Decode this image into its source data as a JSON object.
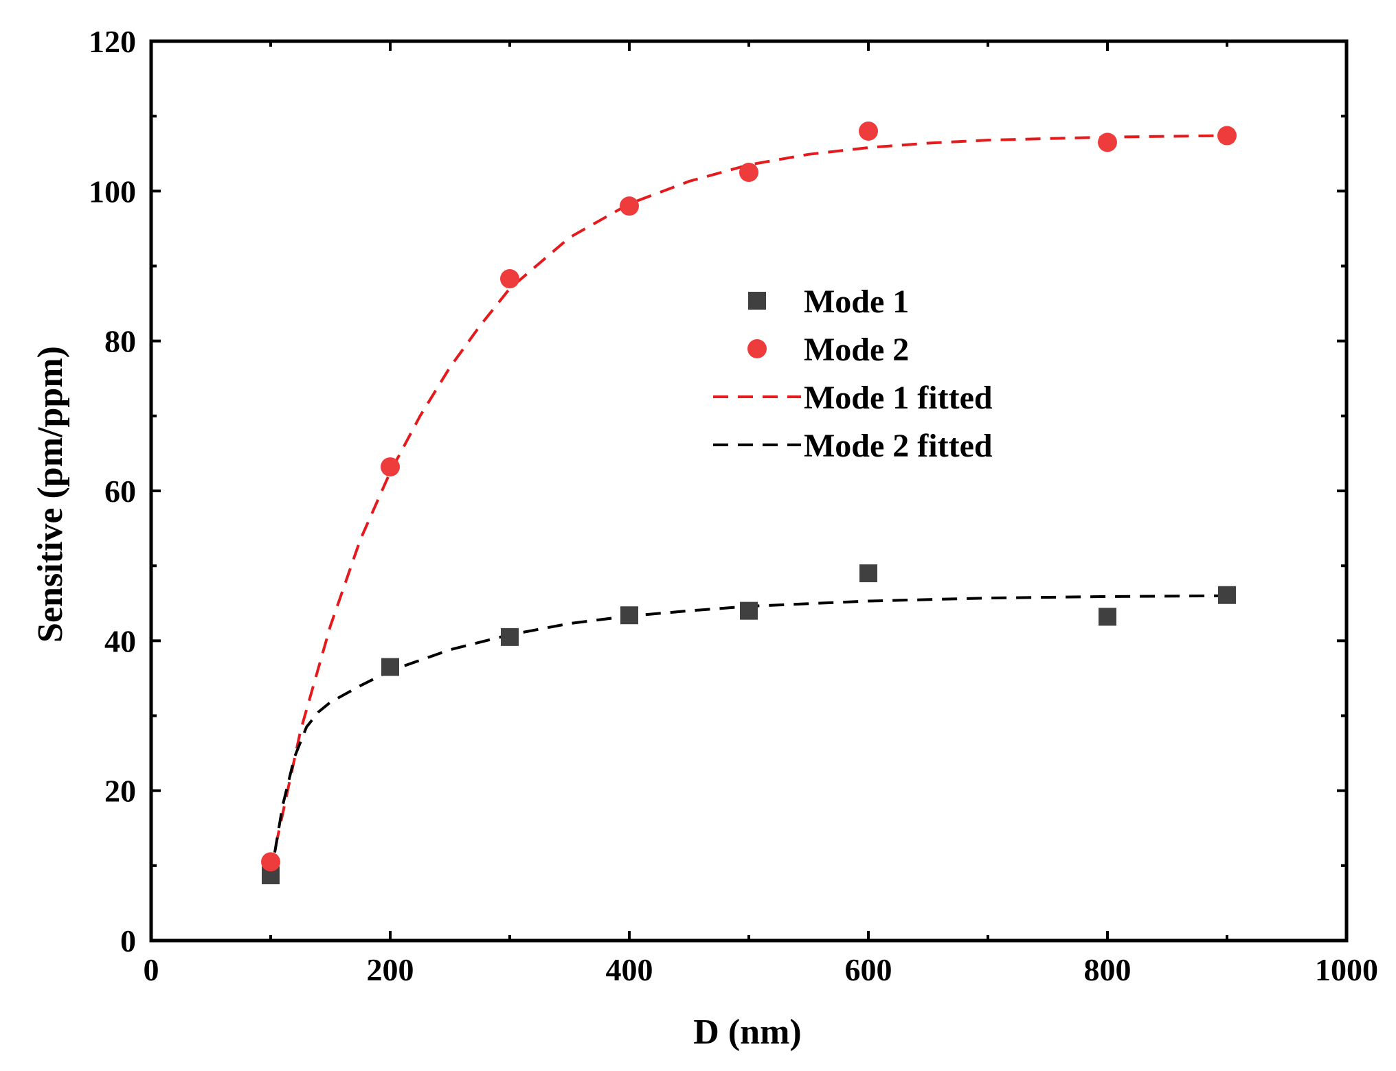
{
  "chart_data": {
    "type": "scatter",
    "title": "",
    "xlabel": "D (nm)",
    "ylabel": "Sensitive (pm/ppm)",
    "xlim": [
      0,
      1000
    ],
    "ylim": [
      0,
      120
    ],
    "xticks": [
      0,
      200,
      400,
      600,
      800,
      1000
    ],
    "yticks": [
      0,
      20,
      40,
      60,
      80,
      100,
      120
    ],
    "xtick_labels": [
      "0",
      "200",
      "400",
      "600",
      "800",
      "1000"
    ],
    "ytick_labels": [
      "0",
      "20",
      "40",
      "60",
      "80",
      "100",
      "120"
    ],
    "grid": false,
    "legend_position": "center-right",
    "series": [
      {
        "name": "Mode 1",
        "kind": "scatter",
        "marker": "square",
        "color": "#404040",
        "x": [
          100,
          200,
          300,
          400,
          500,
          600,
          800,
          900
        ],
        "y": [
          8.7,
          36.5,
          40.5,
          43.4,
          44.0,
          49.0,
          43.2,
          46.1
        ]
      },
      {
        "name": "Mode 2",
        "kind": "scatter",
        "marker": "circle",
        "color": "#ee3b3b",
        "x": [
          100,
          200,
          300,
          400,
          500,
          600,
          800,
          900
        ],
        "y": [
          10.5,
          63.2,
          88.3,
          98.0,
          102.5,
          108.0,
          106.5,
          107.4
        ]
      },
      {
        "name": "Mode 1 fitted",
        "kind": "dashed-line",
        "color": "#e41a1c",
        "x": [
          100,
          125,
          150,
          175,
          200,
          225,
          250,
          275,
          300,
          350,
          400,
          450,
          500,
          550,
          600,
          650,
          700,
          750,
          800,
          850,
          900
        ],
        "y": [
          9.5,
          28.0,
          42.0,
          53.5,
          62.5,
          70.0,
          76.5,
          82.0,
          87.0,
          93.8,
          98.3,
          101.3,
          103.5,
          104.9,
          105.8,
          106.4,
          106.8,
          107.0,
          107.2,
          107.3,
          107.4
        ]
      },
      {
        "name": "Mode 2 fitted",
        "kind": "dashed-line",
        "color": "#000000",
        "x": [
          100,
          110,
          120,
          130,
          140,
          150,
          175,
          200,
          250,
          300,
          350,
          400,
          450,
          500,
          600,
          700,
          800,
          900
        ],
        "y": [
          8.5,
          18.0,
          24.5,
          28.5,
          30.5,
          31.8,
          34.0,
          36.0,
          38.8,
          40.8,
          42.3,
          43.3,
          44.0,
          44.6,
          45.3,
          45.7,
          45.9,
          46.0
        ]
      }
    ]
  }
}
